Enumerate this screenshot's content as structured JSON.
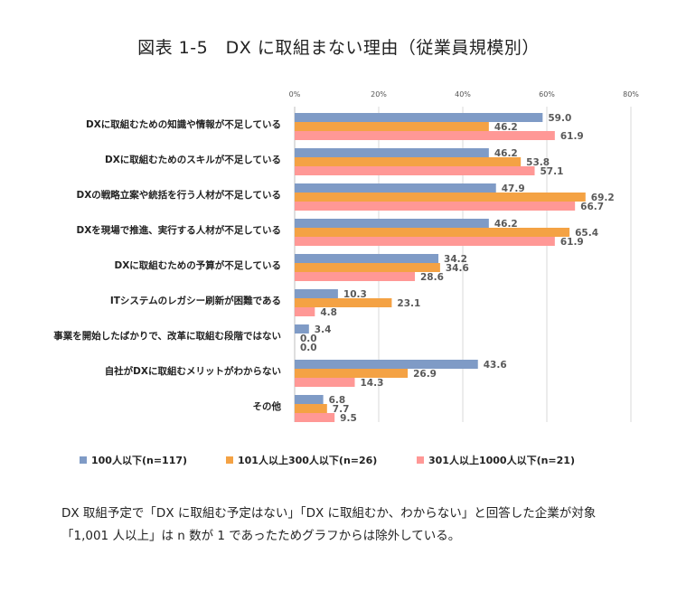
{
  "title": "図表 1-5　DX に取組まない理由（従業員規模別）",
  "chart_data": {
    "type": "bar",
    "orientation": "horizontal",
    "categories": [
      "DXに取組むための知識や情報が不足している",
      "DXに取組むためのスキルが不足している",
      "DXの戦略立案や統括を行う人材が不足している",
      "DXを現場で推進、実行する人材が不足している",
      "DXに取組むための予算が不足している",
      "ITシステムのレガシー刷新が困難である",
      "事業を開始したばかりで、改革に取組む段階ではない",
      "自社がDXに取組むメリットがわからない",
      "その他"
    ],
    "series": [
      {
        "name": "100人以下(n=117)",
        "color": "#7f9bc6",
        "values": [
          59.0,
          46.2,
          47.9,
          46.2,
          34.2,
          10.3,
          3.4,
          43.6,
          6.8
        ]
      },
      {
        "name": "101人以上300人以下(n=26)",
        "color": "#f4a244",
        "values": [
          46.2,
          53.8,
          69.2,
          65.4,
          34.6,
          23.1,
          0.0,
          26.9,
          7.7
        ]
      },
      {
        "name": "301人以上1000人以下(n=21)",
        "color": "#ff9896",
        "values": [
          61.9,
          57.1,
          66.7,
          61.9,
          28.6,
          4.8,
          0.0,
          14.3,
          9.5
        ]
      }
    ],
    "xlim": [
      0,
      80
    ],
    "ticks": [
      "0%",
      "20%",
      "40%",
      "60%",
      "80%"
    ],
    "tick_values": [
      0,
      20,
      40,
      60,
      80
    ],
    "grid": true,
    "legend_position": "bottom"
  },
  "notes": [
    "DX 取組予定で「DX に取組む予定はない」「DX に取組むか、わからない」と回答した企業が対象",
    "「1,001 人以上」は n 数が 1 であったためグラフからは除外している。"
  ]
}
